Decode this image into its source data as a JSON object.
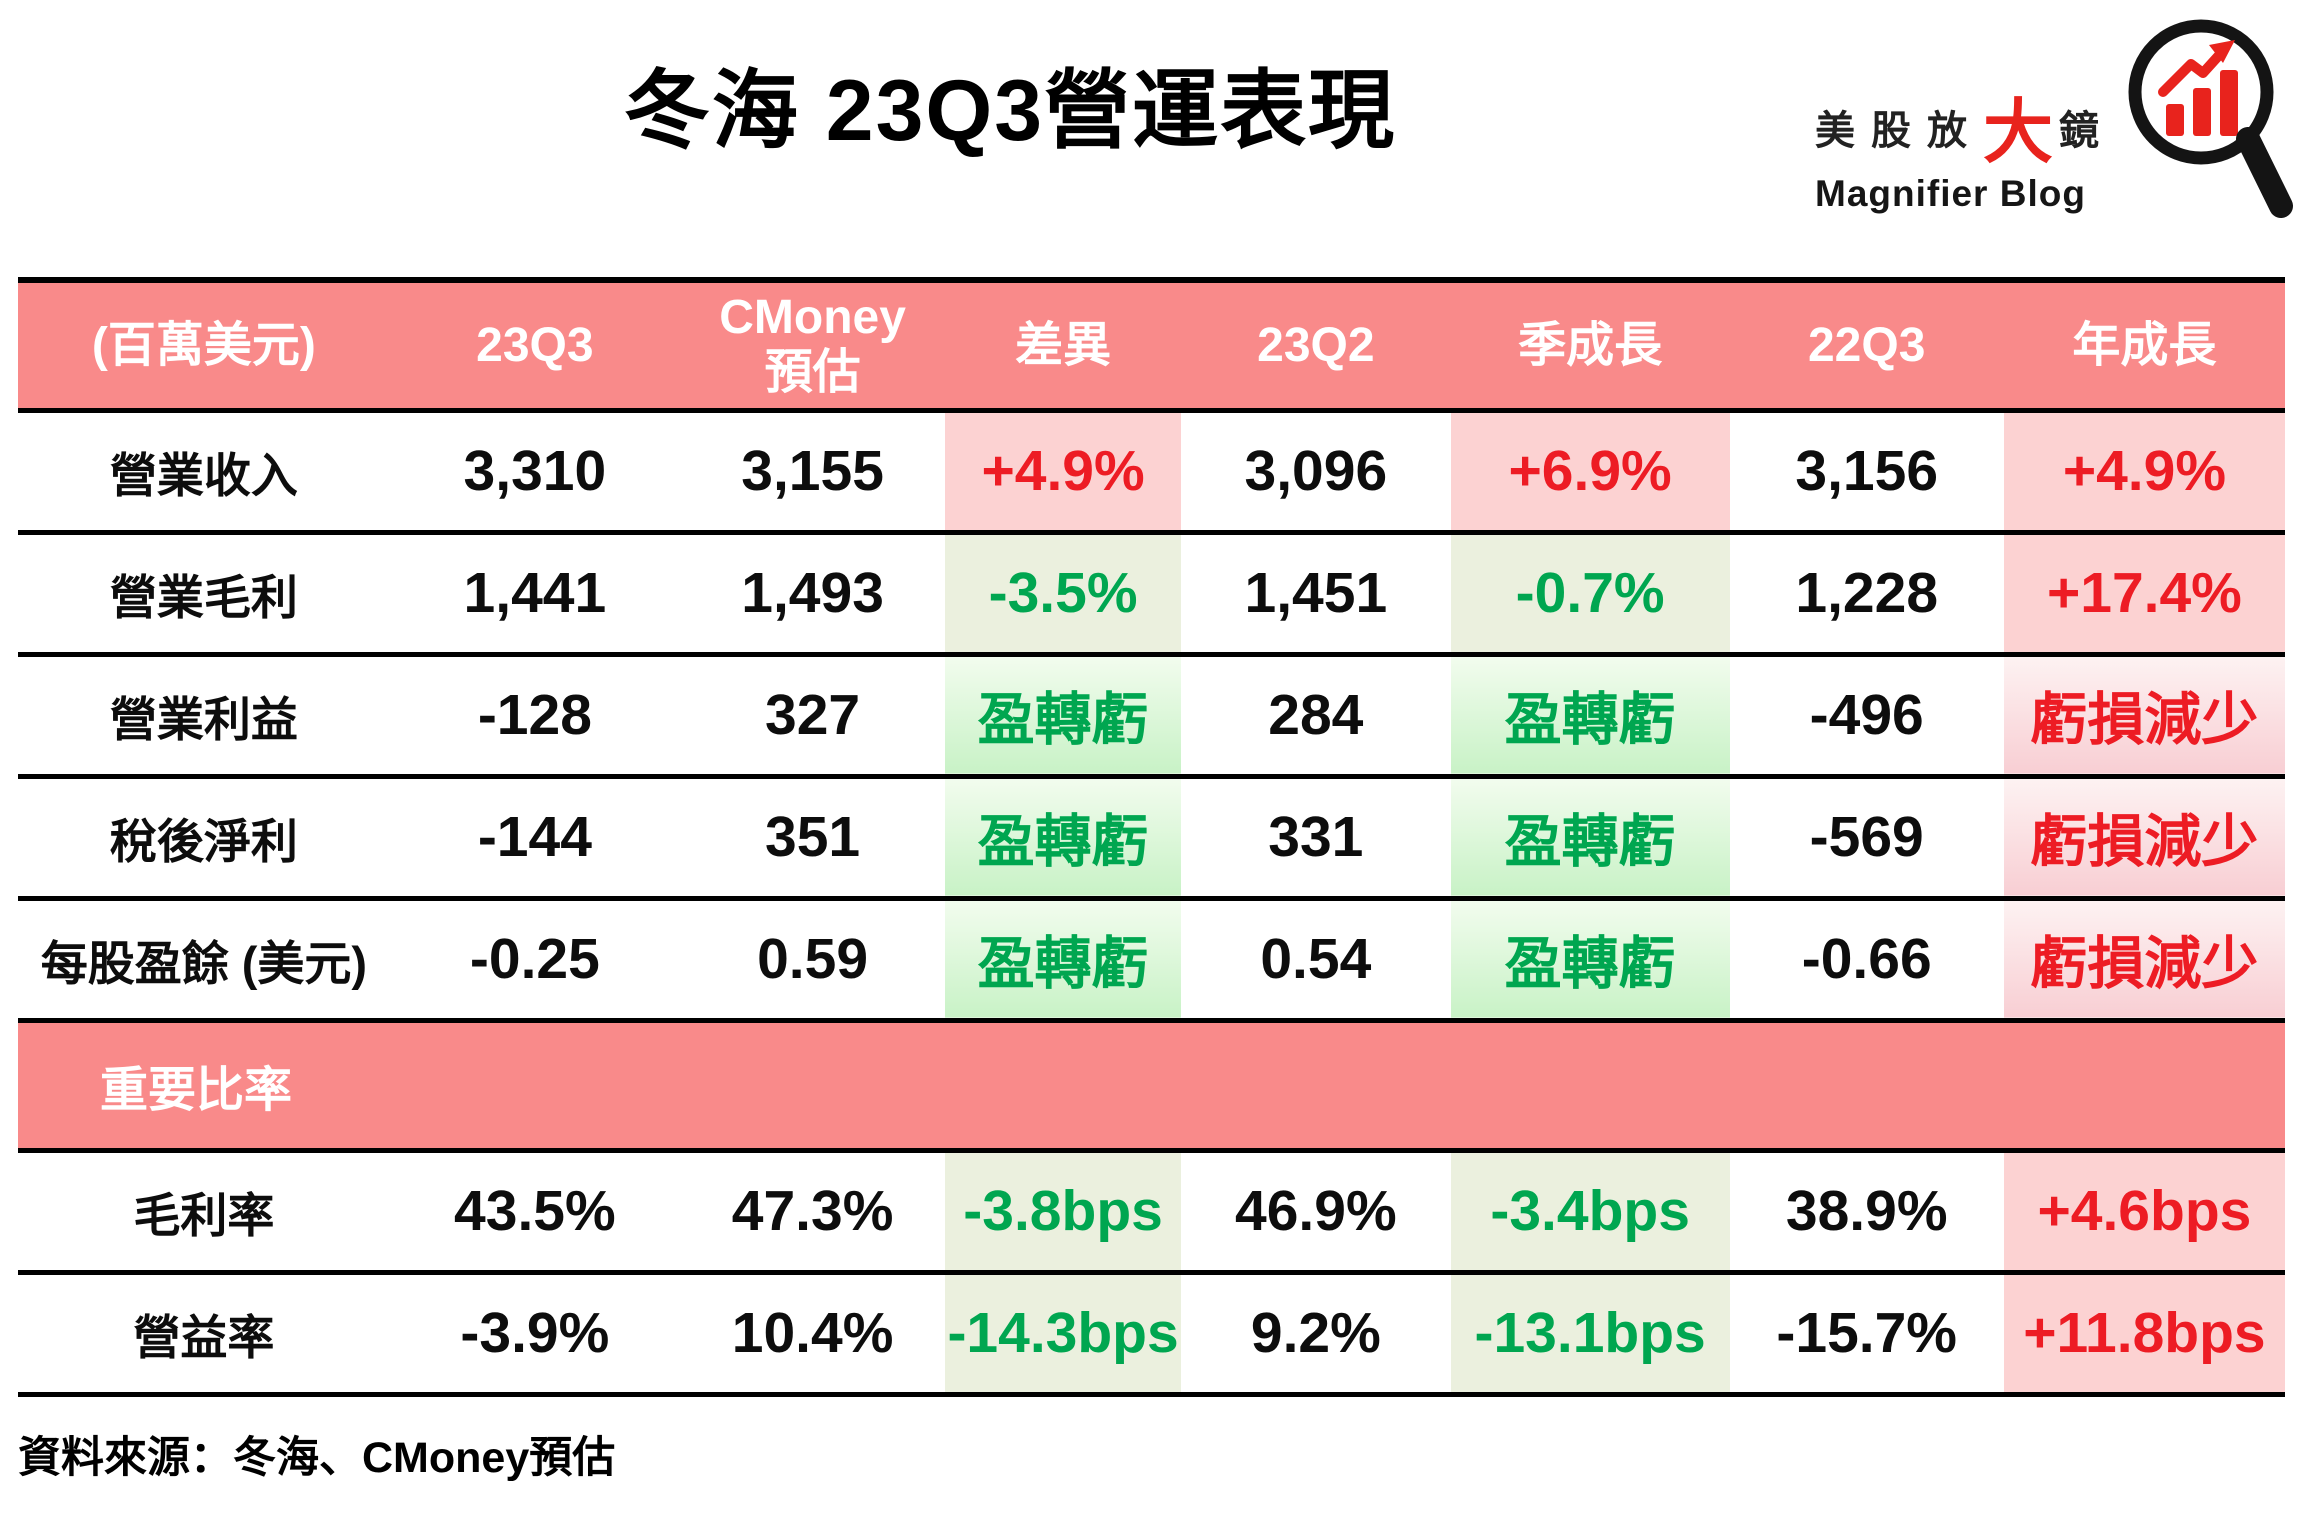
{
  "page": {
    "title": "冬海 23Q3營運表現",
    "source_note": "資料來源：冬海、CMoney預估"
  },
  "logo": {
    "zh_prefix": "美股放",
    "zh_big": "大",
    "zh_suffix": "鏡",
    "en": "Magnifier Blog",
    "icon": "magnifier-chart-icon"
  },
  "colors": {
    "header-bg": "#f98a8a",
    "red": "#ed1c24",
    "green": "#00a650",
    "pink-flat": "#fcd2d2",
    "olive-flat": "#ebf0de",
    "green-grad-top": "#f2fcee",
    "green-grad-bottom": "#c8f2c6",
    "pink-grad-top": "#fdf2f2",
    "pink-grad-bottom": "#f8ced3",
    "logo-red": "#e8231d"
  },
  "chart_data": {
    "type": "table",
    "title": "冬海 23Q3營運表現",
    "unit_note": "(百萬美元)",
    "header": [
      "(百萬美元)",
      "23Q3",
      "CMoney\n預估",
      "差異",
      "23Q2",
      "季成長",
      "22Q3",
      "年成長"
    ],
    "rows": [
      {
        "label": "營業收入",
        "cells": [
          {
            "text": "3,310"
          },
          {
            "text": "3,155"
          },
          {
            "text": "+4.9%",
            "tone": "red",
            "bg": "pink"
          },
          {
            "text": "3,096"
          },
          {
            "text": "+6.9%",
            "tone": "red",
            "bg": "pink"
          },
          {
            "text": "3,156"
          },
          {
            "text": "+4.9%",
            "tone": "red",
            "bg": "pink"
          }
        ]
      },
      {
        "label": "營業毛利",
        "cells": [
          {
            "text": "1,441"
          },
          {
            "text": "1,493"
          },
          {
            "text": "-3.5%",
            "tone": "green",
            "bg": "olive"
          },
          {
            "text": "1,451"
          },
          {
            "text": "-0.7%",
            "tone": "green",
            "bg": "olive"
          },
          {
            "text": "1,228"
          },
          {
            "text": "+17.4%",
            "tone": "red",
            "bg": "pink"
          }
        ]
      },
      {
        "label": "營業利益",
        "cells": [
          {
            "text": "-128"
          },
          {
            "text": "327"
          },
          {
            "text": "盈轉虧",
            "tone": "green",
            "bg": "green-grad"
          },
          {
            "text": "284"
          },
          {
            "text": "盈轉虧",
            "tone": "green",
            "bg": "green-grad"
          },
          {
            "text": "-496"
          },
          {
            "text": "虧損減少",
            "tone": "red",
            "bg": "pink-grad"
          }
        ]
      },
      {
        "label": "稅後淨利",
        "cells": [
          {
            "text": "-144"
          },
          {
            "text": "351"
          },
          {
            "text": "盈轉虧",
            "tone": "green",
            "bg": "green-grad"
          },
          {
            "text": "331"
          },
          {
            "text": "盈轉虧",
            "tone": "green",
            "bg": "green-grad"
          },
          {
            "text": "-569"
          },
          {
            "text": "虧損減少",
            "tone": "red",
            "bg": "pink-grad"
          }
        ]
      },
      {
        "label": "每股盈餘 (美元)",
        "cells": [
          {
            "text": "-0.25"
          },
          {
            "text": "0.59"
          },
          {
            "text": "盈轉虧",
            "tone": "green",
            "bg": "green-grad"
          },
          {
            "text": "0.54"
          },
          {
            "text": "盈轉虧",
            "tone": "green",
            "bg": "green-grad"
          },
          {
            "text": "-0.66"
          },
          {
            "text": "虧損減少",
            "tone": "red",
            "bg": "pink-grad"
          }
        ]
      }
    ],
    "section_title": "重要比率",
    "ratio_rows": [
      {
        "label": "毛利率",
        "cells": [
          {
            "text": "43.5%"
          },
          {
            "text": "47.3%"
          },
          {
            "text": "-3.8bps",
            "tone": "green",
            "bg": "olive"
          },
          {
            "text": "46.9%"
          },
          {
            "text": "-3.4bps",
            "tone": "green",
            "bg": "olive"
          },
          {
            "text": "38.9%"
          },
          {
            "text": "+4.6bps",
            "tone": "red",
            "bg": "pink"
          }
        ]
      },
      {
        "label": "營益率",
        "cells": [
          {
            "text": "-3.9%"
          },
          {
            "text": "10.4%"
          },
          {
            "text": "-14.3bps",
            "tone": "green",
            "bg": "olive"
          },
          {
            "text": "9.2%"
          },
          {
            "text": "-13.1bps",
            "tone": "green",
            "bg": "olive"
          },
          {
            "text": "-15.7%"
          },
          {
            "text": "+11.8bps",
            "tone": "red",
            "bg": "pink"
          }
        ]
      }
    ],
    "source": "資料來源：冬海、CMoney預估"
  }
}
